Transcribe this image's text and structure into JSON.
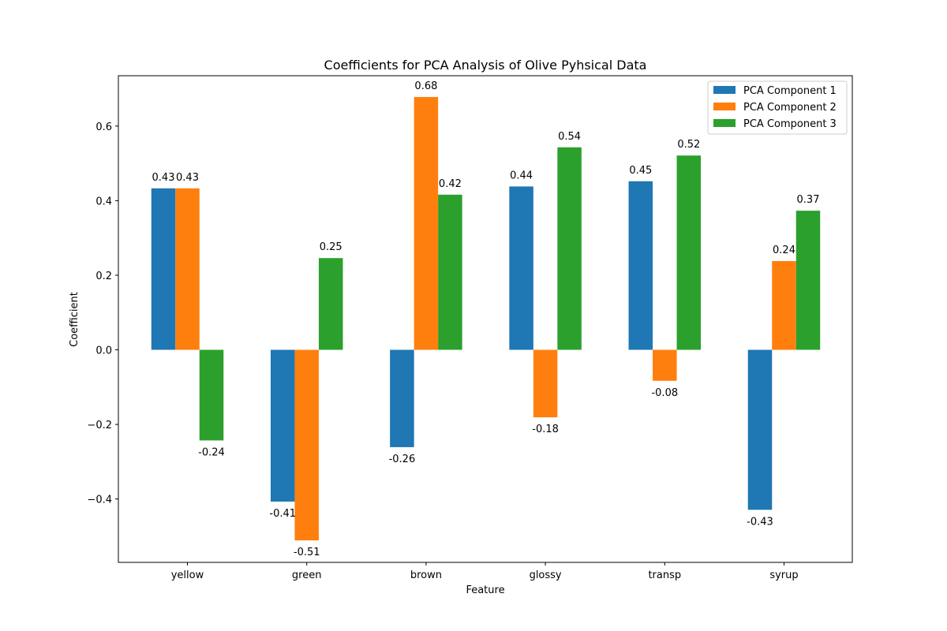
{
  "chart_data": {
    "type": "bar",
    "title": "Coefficients for PCA Analysis of Olive Pyhsical Data",
    "xlabel": "Feature",
    "ylabel": "Coefficient",
    "categories": [
      "yellow",
      "green",
      "brown",
      "glossy",
      "transp",
      "syrup"
    ],
    "series": [
      {
        "name": "PCA Component 1",
        "color": "#1f77b4",
        "values": [
          0.433,
          -0.407,
          -0.261,
          0.438,
          0.452,
          -0.429
        ],
        "labels": [
          "0.43",
          "-0.41",
          "-0.26",
          "0.44",
          "0.45",
          "-0.43"
        ]
      },
      {
        "name": "PCA Component 2",
        "color": "#ff7f0e",
        "values": [
          0.433,
          -0.511,
          0.678,
          -0.181,
          -0.083,
          0.238
        ],
        "labels": [
          "0.43",
          "-0.51",
          "0.68",
          "-0.18",
          "-0.08",
          "0.24"
        ]
      },
      {
        "name": "PCA Component 3",
        "color": "#2ca02c",
        "values": [
          -0.243,
          0.246,
          0.416,
          0.543,
          0.521,
          0.373
        ],
        "labels": [
          "-0.24",
          "0.25",
          "0.42",
          "0.54",
          "0.52",
          "0.37"
        ]
      }
    ],
    "ylim": [
      -0.57,
      0.735
    ],
    "yticks": [
      -0.4,
      -0.2,
      0.0,
      0.2,
      0.4,
      0.6
    ],
    "ytick_labels": [
      "−0.4",
      "−0.2",
      "0.0",
      "0.2",
      "0.4",
      "0.6"
    ],
    "legend_position": "top-right",
    "grid": false
  }
}
